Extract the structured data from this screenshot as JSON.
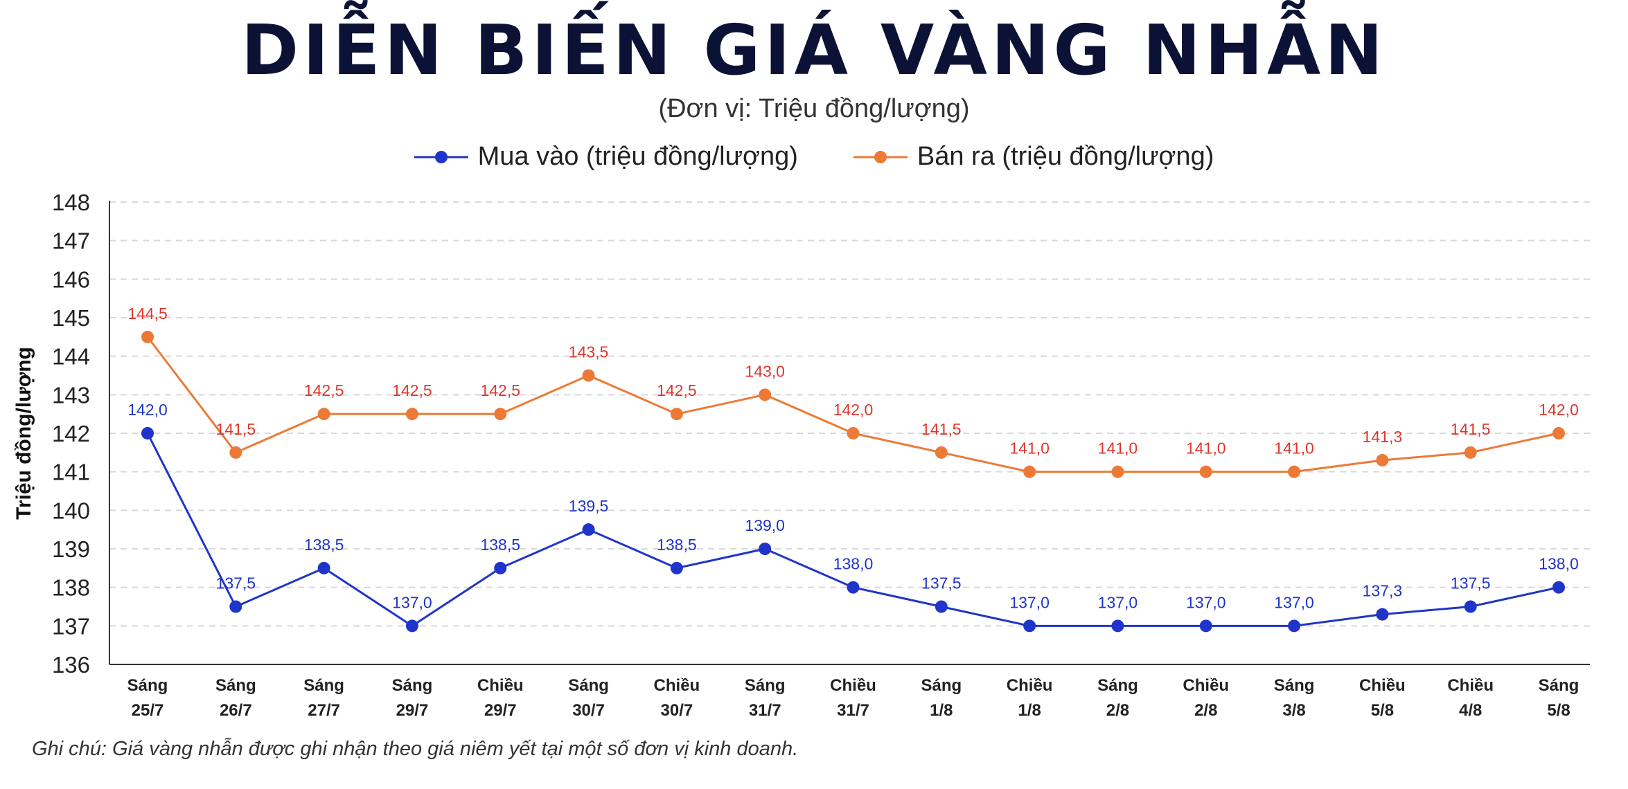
{
  "title": "DIỄN BIẾN GIÁ VÀNG NHẪN",
  "subtitle": "(Đơn vị: Triệu đồng/lượng)",
  "note": "Ghi chú: Giá vàng nhẫn được ghi nhận theo giá niêm yết tại một số đơn vị kinh doanh.",
  "colors": {
    "buy": "#1f35c9",
    "sell": "#ec7a36",
    "buy_label": "#1f35c9",
    "sell_label": "#e0362b"
  },
  "chart_data": {
    "type": "line",
    "title": "DIỄN BIẾN GIÁ VÀNG NHẪN",
    "ylabel": "Triệu đồng/lượng",
    "xlabel": "",
    "ylim": [
      136,
      148
    ],
    "yticks": [
      136,
      137,
      138,
      139,
      140,
      141,
      142,
      143,
      144,
      145,
      146,
      147,
      148
    ],
    "grid": true,
    "legend_position": "top-center",
    "categories": [
      [
        "Sáng",
        "25/7"
      ],
      [
        "Sáng",
        "26/7"
      ],
      [
        "Sáng",
        "27/7"
      ],
      [
        "Sáng",
        "29/7"
      ],
      [
        "Chiều",
        "29/7"
      ],
      [
        "Sáng",
        "30/7"
      ],
      [
        "Chiều",
        "30/7"
      ],
      [
        "Sáng",
        "31/7"
      ],
      [
        "Chiều",
        "31/7"
      ],
      [
        "Sáng",
        "1/8"
      ],
      [
        "Chiều",
        "1/8"
      ],
      [
        "Sáng",
        "2/8"
      ],
      [
        "Chiều",
        "2/8"
      ],
      [
        "Sáng",
        "3/8"
      ],
      [
        "Chiều",
        "5/8"
      ],
      [
        "Chiều",
        "4/8"
      ],
      [
        "Sáng",
        "5/8"
      ]
    ],
    "series": [
      {
        "name": "Mua vào (triệu đồng/lượng)",
        "values": [
          142.0,
          137.5,
          138.5,
          137.0,
          138.5,
          139.5,
          138.5,
          139.0,
          138.0,
          137.5,
          137.0,
          137.0,
          137.0,
          137.0,
          137.3,
          137.5,
          138.0
        ],
        "labels": [
          "142,0",
          "137,5",
          "138,5",
          "137,0",
          "138,5",
          "139,5",
          "138,5",
          "139,0",
          "138,0",
          "137,5",
          "137,0",
          "137,0",
          "137,0",
          "137,0",
          "137,3",
          "137,5",
          "138,0"
        ]
      },
      {
        "name": "Bán ra (triệu đồng/lượng)",
        "values": [
          144.5,
          141.5,
          142.5,
          142.5,
          142.5,
          143.5,
          142.5,
          143.0,
          142.0,
          141.5,
          141.0,
          141.0,
          141.0,
          141.0,
          141.3,
          141.5,
          142.0
        ],
        "labels": [
          "144,5",
          "141,5",
          "142,5",
          "142,5",
          "142,5",
          "143,5",
          "142,5",
          "143,0",
          "142,0",
          "141,5",
          "141,0",
          "141,0",
          "141,0",
          "141,0",
          "141,3",
          "141,5",
          "142,0"
        ]
      }
    ]
  }
}
